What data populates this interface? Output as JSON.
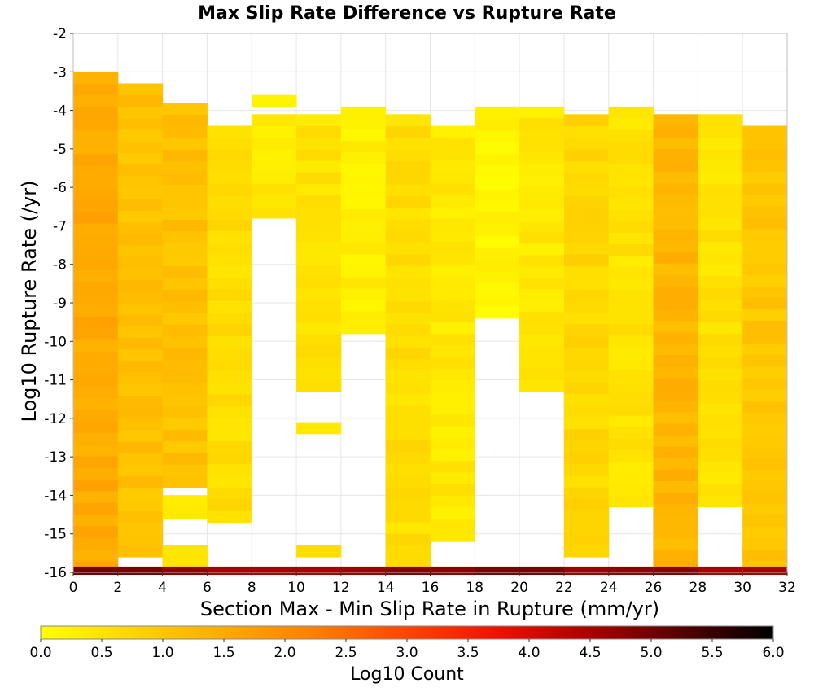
{
  "chart_data": {
    "type": "heatmap",
    "title": "Max Slip Rate Difference vs Rupture Rate",
    "xlabel": "Section Max - Min Slip Rate in Rupture (mm/yr)",
    "ylabel": "Log10 Rupture Rate (/yr)",
    "xlim": [
      0,
      32
    ],
    "ylim": [
      -16,
      -2
    ],
    "x_ticks": [
      "0",
      "2",
      "4",
      "6",
      "8",
      "10",
      "12",
      "14",
      "16",
      "18",
      "20",
      "22",
      "24",
      "26",
      "28",
      "30",
      "32"
    ],
    "y_ticks": [
      "-2",
      "-3",
      "-4",
      "-5",
      "-6",
      "-7",
      "-8",
      "-9",
      "-10",
      "-11",
      "-12",
      "-13",
      "-14",
      "-15",
      "-16"
    ],
    "x_bin_width": 2,
    "y_bin_height": 0.3,
    "grid": true,
    "colorbar": {
      "label": "Log10 Count",
      "min": 0.0,
      "max": 6.0,
      "ticks": [
        "0.0",
        "0.5",
        "1.0",
        "1.5",
        "2.0",
        "2.5",
        "3.0",
        "3.5",
        "4.0",
        "4.5",
        "5.0",
        "5.5",
        "6.0"
      ],
      "stops": [
        "#ffff00",
        "#ffd500",
        "#ffaa00",
        "#ff7f00",
        "#ff4400",
        "#ee1100",
        "#aa0000",
        "#550000",
        "#000000"
      ],
      "placement": "bottom"
    },
    "columns": [
      {
        "x": 1,
        "segments": [
          [
            -16,
            -3.0,
            1.5
          ]
        ],
        "bottom": 5.0
      },
      {
        "x": 3,
        "segments": [
          [
            -15.6,
            -3.3,
            1.1
          ]
        ],
        "bottom": 4.9
      },
      {
        "x": 5,
        "segments": [
          [
            -15.9,
            -15.3,
            0.5
          ],
          [
            -13.8,
            -3.8,
            1.1
          ],
          [
            -14.6,
            -14.0,
            0.4
          ]
        ],
        "bottom": 4.7
      },
      {
        "x": 7,
        "segments": [
          [
            -14.7,
            -4.4,
            0.6
          ]
        ],
        "bottom": 4.5
      },
      {
        "x": 9,
        "segments": [
          [
            -6.8,
            -4.1,
            0.4
          ],
          [
            -3.9,
            -3.6,
            0.1
          ]
        ],
        "bottom": 4.5
      },
      {
        "x": 11,
        "segments": [
          [
            -11.3,
            -4.1,
            0.5
          ],
          [
            -12.4,
            -12.1,
            0.3
          ],
          [
            -15.6,
            -15.3,
            0.5
          ]
        ],
        "bottom": 4.5
      },
      {
        "x": 13,
        "segments": [
          [
            -9.8,
            -3.9,
            0.3
          ]
        ],
        "bottom": 4.6
      },
      {
        "x": 15,
        "segments": [
          [
            -15.9,
            -4.1,
            0.6
          ]
        ],
        "bottom": 4.8
      },
      {
        "x": 17,
        "segments": [
          [
            -15.2,
            -4.4,
            0.4
          ]
        ],
        "bottom": 4.7
      },
      {
        "x": 19,
        "segments": [
          [
            -9.4,
            -3.9,
            0.2
          ]
        ],
        "bottom": 4.9
      },
      {
        "x": 21,
        "segments": [
          [
            -11.3,
            -3.9,
            0.4
          ]
        ],
        "bottom": 4.9
      },
      {
        "x": 23,
        "segments": [
          [
            -15.6,
            -4.1,
            0.7
          ]
        ],
        "bottom": 4.6
      },
      {
        "x": 25,
        "segments": [
          [
            -14.3,
            -3.9,
            0.5
          ]
        ],
        "bottom": 4.7
      },
      {
        "x": 27,
        "segments": [
          [
            -16,
            -4.1,
            1.3
          ]
        ],
        "bottom": 4.8
      },
      {
        "x": 29,
        "segments": [
          [
            -14.3,
            -4.1,
            0.5
          ]
        ],
        "bottom": 4.5
      },
      {
        "x": 31,
        "segments": [
          [
            -16,
            -4.4,
            1.0
          ]
        ],
        "bottom": 4.5
      }
    ]
  }
}
